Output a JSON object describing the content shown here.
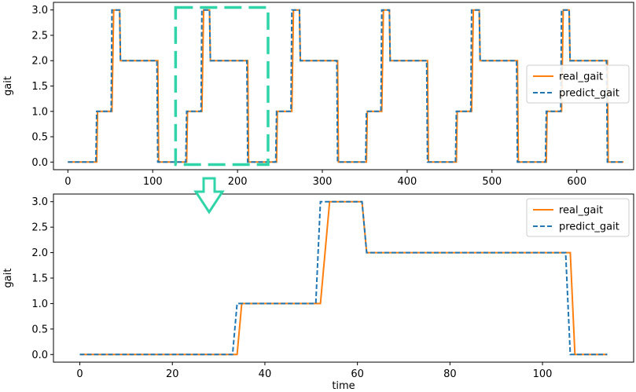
{
  "colors": {
    "real": "#ff7f0e",
    "predict": "#1f77b4",
    "highlight": "#2fd5a8",
    "axis": "#000000"
  },
  "chart_data": [
    {
      "type": "line",
      "title": "",
      "xlabel": "",
      "ylabel": "gait",
      "xlim": [
        -17,
        667
      ],
      "ylim": [
        -0.15,
        3.15
      ],
      "xticks": [
        0,
        100,
        200,
        300,
        400,
        500,
        600
      ],
      "yticks": [
        0.0,
        0.5,
        1.0,
        1.5,
        2.0,
        2.5,
        3.0
      ],
      "xtick_labels": [
        "0",
        "100",
        "200",
        "300",
        "400",
        "500",
        "600"
      ],
      "ytick_labels": [
        "0.0",
        "0.5",
        "1.0",
        "1.5",
        "2.0",
        "2.5",
        "3.0"
      ],
      "grid": false,
      "legend": {
        "placement": "center-right"
      },
      "highlight_box": {
        "x": [
          127,
          236
        ],
        "y": [
          -0.05,
          3.05
        ],
        "style": "dashed"
      },
      "series": [
        {
          "name": "real_gait",
          "style": "solid",
          "x": [
            0,
            34,
            35,
            52,
            54,
            61,
            62,
            106,
            107,
            140,
            141,
            158,
            160,
            167,
            168,
            212,
            213,
            246,
            247,
            264,
            266,
            273,
            274,
            318,
            319,
            352,
            353,
            370,
            372,
            379,
            380,
            424,
            425,
            458,
            459,
            476,
            478,
            485,
            486,
            530,
            531,
            564,
            565,
            582,
            584,
            591,
            592,
            636,
            637,
            655
          ],
          "y": [
            0,
            0,
            1,
            1,
            3,
            3,
            2,
            2,
            0,
            0,
            1,
            1,
            3,
            3,
            2,
            2,
            0,
            0,
            1,
            1,
            3,
            3,
            2,
            2,
            0,
            0,
            1,
            1,
            3,
            3,
            2,
            2,
            0,
            0,
            1,
            1,
            3,
            3,
            2,
            2,
            0,
            0,
            1,
            1,
            3,
            3,
            2,
            2,
            0,
            0
          ]
        },
        {
          "name": "predict_gait",
          "style": "dashed",
          "x": [
            0,
            33,
            34,
            51,
            52,
            61,
            62,
            105,
            106,
            139,
            140,
            157,
            158,
            167,
            168,
            211,
            212,
            245,
            246,
            263,
            264,
            273,
            274,
            317,
            318,
            351,
            352,
            369,
            370,
            379,
            380,
            423,
            424,
            457,
            458,
            475,
            476,
            485,
            486,
            529,
            530,
            563,
            564,
            581,
            582,
            591,
            592,
            635,
            636,
            655
          ],
          "y": [
            0,
            0,
            1,
            1,
            3,
            3,
            2,
            2,
            0,
            0,
            1,
            1,
            3,
            3,
            2,
            2,
            0,
            0,
            1,
            1,
            3,
            3,
            2,
            2,
            0,
            0,
            1,
            1,
            3,
            3,
            2,
            2,
            0,
            0,
            1,
            1,
            3,
            3,
            2,
            2,
            0,
            0,
            1,
            1,
            3,
            3,
            2,
            2,
            0,
            0
          ]
        }
      ]
    },
    {
      "type": "line",
      "title": "",
      "xlabel": "time",
      "ylabel": "gait",
      "xlim": [
        -5.7,
        119.7
      ],
      "ylim": [
        -0.15,
        3.15
      ],
      "xticks": [
        0,
        20,
        40,
        60,
        80,
        100
      ],
      "yticks": [
        0.0,
        0.5,
        1.0,
        1.5,
        2.0,
        2.5,
        3.0
      ],
      "xtick_labels": [
        "0",
        "20",
        "40",
        "60",
        "80",
        "100"
      ],
      "ytick_labels": [
        "0.0",
        "0.5",
        "1.0",
        "1.5",
        "2.0",
        "2.5",
        "3.0"
      ],
      "grid": false,
      "legend": {
        "placement": "top-right"
      },
      "series": [
        {
          "name": "real_gait",
          "style": "solid",
          "x": [
            0,
            34,
            35,
            52,
            54,
            61,
            62,
            106,
            107,
            114
          ],
          "y": [
            0,
            0,
            1,
            1,
            3,
            3,
            2,
            2,
            0,
            0
          ]
        },
        {
          "name": "predict_gait",
          "style": "dashed",
          "x": [
            0,
            33,
            34,
            51,
            52,
            61,
            62,
            105,
            106,
            114
          ],
          "y": [
            0,
            0,
            1,
            1,
            3,
            3,
            2,
            2,
            0,
            0
          ]
        }
      ]
    }
  ]
}
